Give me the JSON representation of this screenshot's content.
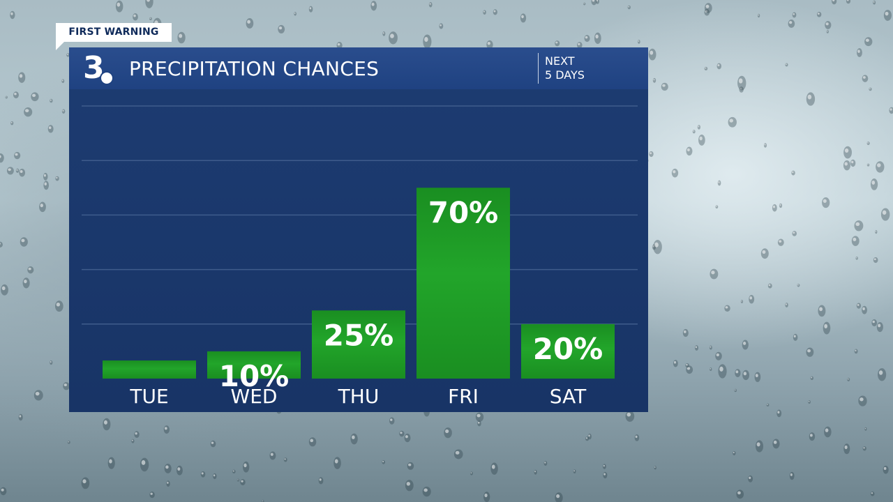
{
  "badge": {
    "label": "FIRST WARNING"
  },
  "header": {
    "logo_text": "3",
    "title": "PRECIPITATION CHANCES",
    "period_line1": "NEXT",
    "period_line2": "5 DAYS"
  },
  "colors": {
    "panel": "#1b386c",
    "header": "#24488a",
    "bar": "#22a52a",
    "bar_dark": "#1a8e21",
    "text": "#ffffff",
    "badge_text": "#0f2a5a"
  },
  "chart_data": {
    "type": "bar",
    "title": "PRECIPITATION CHANCES",
    "categories": [
      "TUE",
      "WED",
      "THU",
      "FRI",
      "SAT"
    ],
    "values": [
      0,
      10,
      25,
      70,
      20
    ],
    "labels": [
      "",
      "10%",
      "25%",
      "70%",
      "20%"
    ],
    "ylim": [
      0,
      100
    ],
    "ygrid_step": 20,
    "grid": true,
    "xlabel": "",
    "ylabel": ""
  }
}
